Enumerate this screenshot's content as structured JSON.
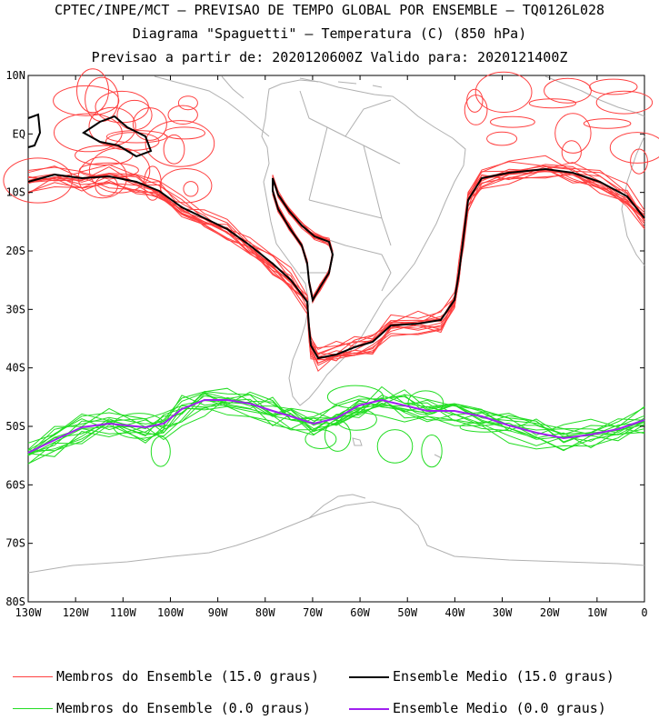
{
  "header": {
    "line1": "CPTEC/INPE/MCT – PREVISAO DE TEMPO GLOBAL POR ENSEMBLE – TQ0126L028",
    "line2": "Diagrama \"Spaguetti\" – Temperatura (C) (850 hPa)",
    "line3": "Previsao a partir de: 2020120600Z  Valido para: 2020121400Z"
  },
  "map": {
    "lat_labels": [
      "10N",
      "EQ",
      "10S",
      "20S",
      "30S",
      "40S",
      "50S",
      "60S",
      "70S",
      "80S"
    ],
    "lon_labels": [
      "130W",
      "120W",
      "110W",
      "100W",
      "90W",
      "80W",
      "70W",
      "60W",
      "50W",
      "40W",
      "30W",
      "20W",
      "10W",
      "0"
    ],
    "colors": {
      "members_15": "#ff4040",
      "mean_15": "#000000",
      "members_0": "#22dd22",
      "mean_0": "#a020f0",
      "coast": "#b0b0b0"
    }
  },
  "legend": {
    "members_15": "Membros do Ensemble (15.0 graus)",
    "mean_15": "Ensemble Medio (15.0 graus)",
    "members_0": "Membros do Ensemble (0.0 graus)",
    "mean_0": "Ensemble Medio (0.0 graus)"
  }
}
